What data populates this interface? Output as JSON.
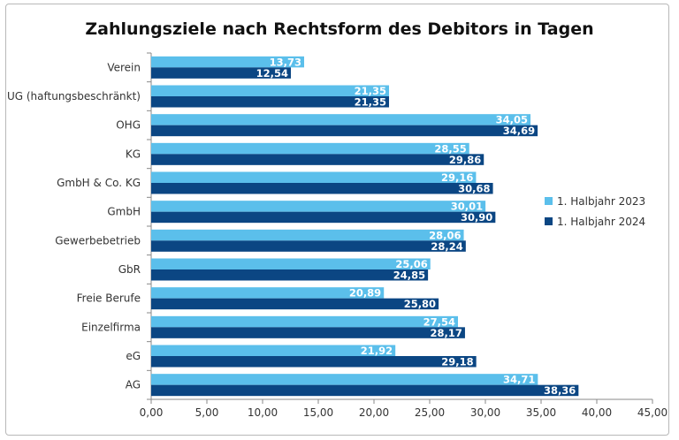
{
  "chart_data": {
    "type": "bar",
    "orientation": "horizontal",
    "title": "Zahlungsziele nach Rechtsform des Debitors in Tagen",
    "xlabel": "",
    "ylabel": "",
    "categories": [
      "Verein",
      "UG (haftungsbeschränkt)",
      "OHG",
      "KG",
      "GmbH & Co. KG",
      "GmbH",
      "Gewerbebetrieb",
      "GbR",
      "Freie Berufe",
      "Einzelfirma",
      "eG",
      "AG"
    ],
    "series": [
      {
        "name": "1. Halbjahr 2023",
        "color": "#5bbfeb",
        "values": [
          13.73,
          21.35,
          34.05,
          28.55,
          29.16,
          30.01,
          28.06,
          25.06,
          20.89,
          27.54,
          21.92,
          34.71
        ],
        "labels": [
          "13,73",
          "21,35",
          "34,05",
          "28,55",
          "29,16",
          "30,01",
          "28,06",
          "25,06",
          "20,89",
          "27,54",
          "21,92",
          "34,71"
        ]
      },
      {
        "name": "1. Halbjahr 2024",
        "color": "#0b4683",
        "values": [
          12.54,
          21.35,
          34.69,
          29.86,
          30.68,
          30.9,
          28.24,
          24.85,
          25.8,
          28.17,
          29.18,
          38.36
        ],
        "labels": [
          "12,54",
          "21,35",
          "34,69",
          "29,86",
          "30,68",
          "30,90",
          "28,24",
          "24,85",
          "25,80",
          "28,17",
          "29,18",
          "38,36"
        ]
      }
    ],
    "xlim": [
      0,
      45
    ],
    "xticks": [
      "0,00",
      "5,00",
      "10,00",
      "15,00",
      "20,00",
      "25,00",
      "30,00",
      "35,00",
      "40,00",
      "45,00"
    ],
    "grid": false,
    "legend": "right"
  }
}
